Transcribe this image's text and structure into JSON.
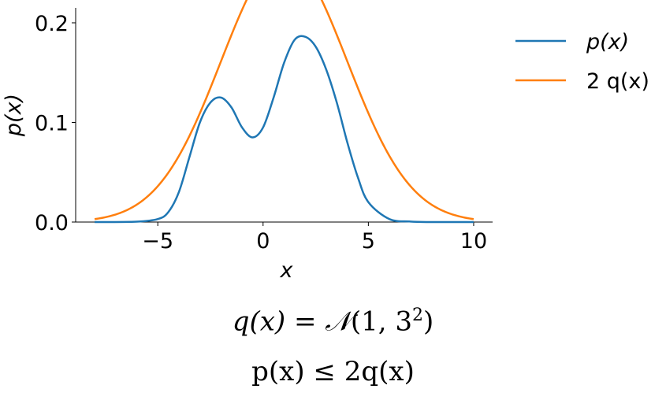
{
  "chart_data": {
    "type": "line",
    "xlabel": "x",
    "ylabel": "p(x)",
    "xlim": [
      -8.9,
      10.9
    ],
    "ylim": [
      -0.0,
      0.215
    ],
    "xticks": [
      -5,
      0,
      5,
      10
    ],
    "xtick_labels": [
      "−5",
      "0",
      "5",
      "10"
    ],
    "yticks": [
      0.0,
      0.1,
      0.2
    ],
    "ytick_labels": [
      "0.0",
      "0.1",
      "0.2"
    ],
    "grid": false,
    "legend_position": "outside-right-top",
    "series": [
      {
        "name": "p(x)",
        "color": "#1f77b4",
        "x": [
          -8,
          -6,
          -5,
          -4.5,
          -4,
          -3.5,
          -3,
          -2.5,
          -2,
          -1.5,
          -1,
          -0.5,
          0,
          0.5,
          1,
          1.5,
          2,
          2.5,
          3,
          3.5,
          4,
          4.5,
          5,
          6,
          7,
          8,
          10
        ],
        "y": [
          0.0,
          0.0004,
          0.003,
          0.01,
          0.03,
          0.065,
          0.1,
          0.12,
          0.125,
          0.115,
          0.095,
          0.085,
          0.095,
          0.125,
          0.16,
          0.183,
          0.186,
          0.176,
          0.153,
          0.12,
          0.08,
          0.045,
          0.02,
          0.003,
          0.0005,
          0.0,
          0.0
        ]
      },
      {
        "name": "2 q(x)",
        "color": "#ff7f0e",
        "mu": 1,
        "sigma": 3,
        "scale": 2
      }
    ]
  },
  "formulas": {
    "line1": {
      "lhs": "q(x) = ",
      "dist": "𝒩",
      "args": "(1, 3",
      "exp": "2",
      "close": ")"
    },
    "line2": "p(x) ≤ 2q(x)"
  }
}
